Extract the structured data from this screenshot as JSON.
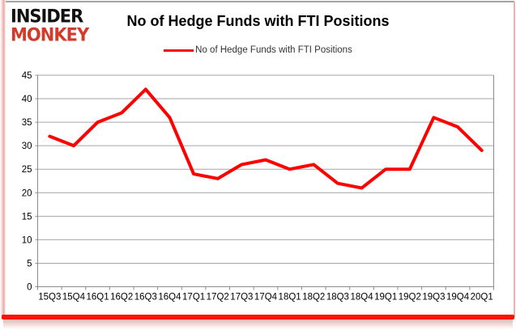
{
  "header": {
    "logo_line1": "INSIDER",
    "logo_line2": "MONKEY",
    "title": "No of Hedge Funds with FTI Positions"
  },
  "legend": {
    "label": "No of Hedge Funds with FTI Positions"
  },
  "chart_data": {
    "type": "line",
    "title": "No of Hedge Funds with FTI Positions",
    "categories": [
      "15Q3",
      "15Q4",
      "16Q1",
      "16Q2",
      "16Q3",
      "16Q4",
      "17Q1",
      "17Q2",
      "17Q3",
      "17Q4",
      "18Q1",
      "18Q2",
      "18Q3",
      "18Q4",
      "19Q1",
      "19Q2",
      "19Q3",
      "19Q4",
      "20Q1"
    ],
    "series": [
      {
        "name": "No of Hedge Funds with FTI Positions",
        "values": [
          32,
          30,
          35,
          37,
          42,
          36,
          24,
          23,
          26,
          27,
          25,
          26,
          22,
          21,
          25,
          25,
          36,
          34,
          29
        ]
      }
    ],
    "xlabel": "",
    "ylabel": "",
    "ylim": [
      0,
      45
    ],
    "ytick_step": 5,
    "grid": true,
    "legend_position": "top"
  },
  "colors": {
    "line_red": "#fe0000",
    "logo_red": "#d03b2a",
    "grid_gray": "#a6a6a6",
    "axis_gray": "#8c8c8c",
    "bottom_bar_red": "#fb1105"
  }
}
